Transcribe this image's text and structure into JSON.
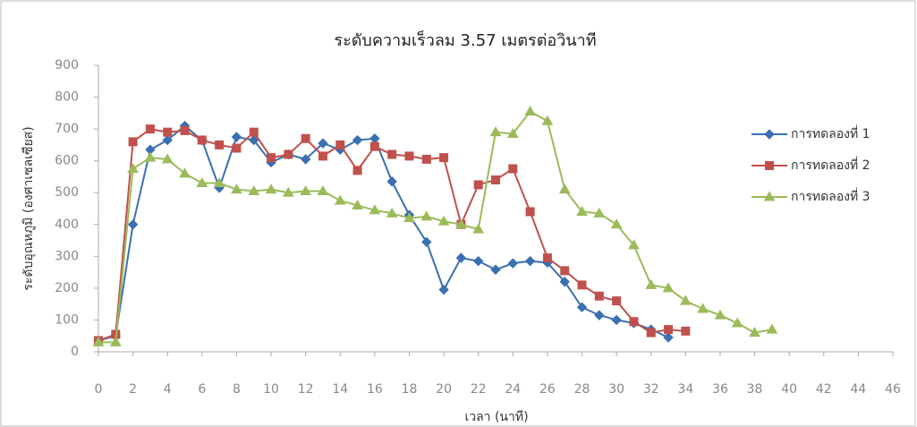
{
  "chart_data": {
    "type": "line",
    "title": "ระดับความเร็วลม 3.57 เมตรต่อวินาที",
    "x_label": "เวลา (นาที)",
    "y_label": "ระดับอุณหภูมิ (องศาเซลเซียส)",
    "x": [
      0,
      1,
      2,
      3,
      4,
      5,
      6,
      7,
      8,
      9,
      10,
      11,
      12,
      13,
      14,
      15,
      16,
      17,
      18,
      19,
      20,
      21,
      22,
      23,
      24,
      25,
      26,
      27,
      28,
      29,
      30,
      31,
      32,
      33,
      34,
      35,
      36,
      37,
      38,
      39
    ],
    "series": [
      {
        "name": "การทดลองที่ 1",
        "color": "#3a6fb0",
        "marker": "diamond",
        "values": [
          35,
          50,
          400,
          635,
          665,
          710,
          665,
          515,
          675,
          665,
          595,
          620,
          605,
          655,
          635,
          665,
          670,
          535,
          430,
          345,
          195,
          295,
          285,
          258,
          278,
          285,
          280,
          220,
          140,
          115,
          100,
          90,
          70,
          45,
          null,
          null,
          null,
          null,
          null,
          null
        ]
      },
      {
        "name": "การทดลองที่ 2",
        "color": "#c0504d",
        "marker": "square",
        "values": [
          35,
          55,
          660,
          700,
          690,
          695,
          665,
          650,
          640,
          690,
          610,
          620,
          670,
          615,
          650,
          570,
          645,
          620,
          615,
          605,
          610,
          400,
          525,
          540,
          575,
          440,
          295,
          255,
          210,
          175,
          160,
          95,
          60,
          70,
          65,
          null,
          null,
          null,
          null,
          null
        ]
      },
      {
        "name": "การทดลองที่ 3",
        "color": "#9bbb59",
        "marker": "triangle",
        "values": [
          30,
          30,
          575,
          610,
          605,
          560,
          530,
          530,
          510,
          505,
          510,
          500,
          505,
          505,
          475,
          460,
          445,
          435,
          420,
          425,
          410,
          400,
          385,
          690,
          685,
          755,
          725,
          510,
          440,
          435,
          400,
          335,
          210,
          200,
          160,
          135,
          115,
          90,
          60,
          70
        ]
      }
    ],
    "xlim": [
      0,
      46
    ],
    "xticks": [
      0,
      2,
      4,
      6,
      8,
      10,
      12,
      14,
      16,
      18,
      20,
      22,
      24,
      26,
      28,
      30,
      32,
      34,
      36,
      38,
      40,
      42,
      44,
      46
    ],
    "ylim": [
      0,
      900
    ],
    "yticks": [
      0,
      100,
      200,
      300,
      400,
      500,
      600,
      700,
      800,
      900
    ],
    "grid": false,
    "legend": "right"
  }
}
